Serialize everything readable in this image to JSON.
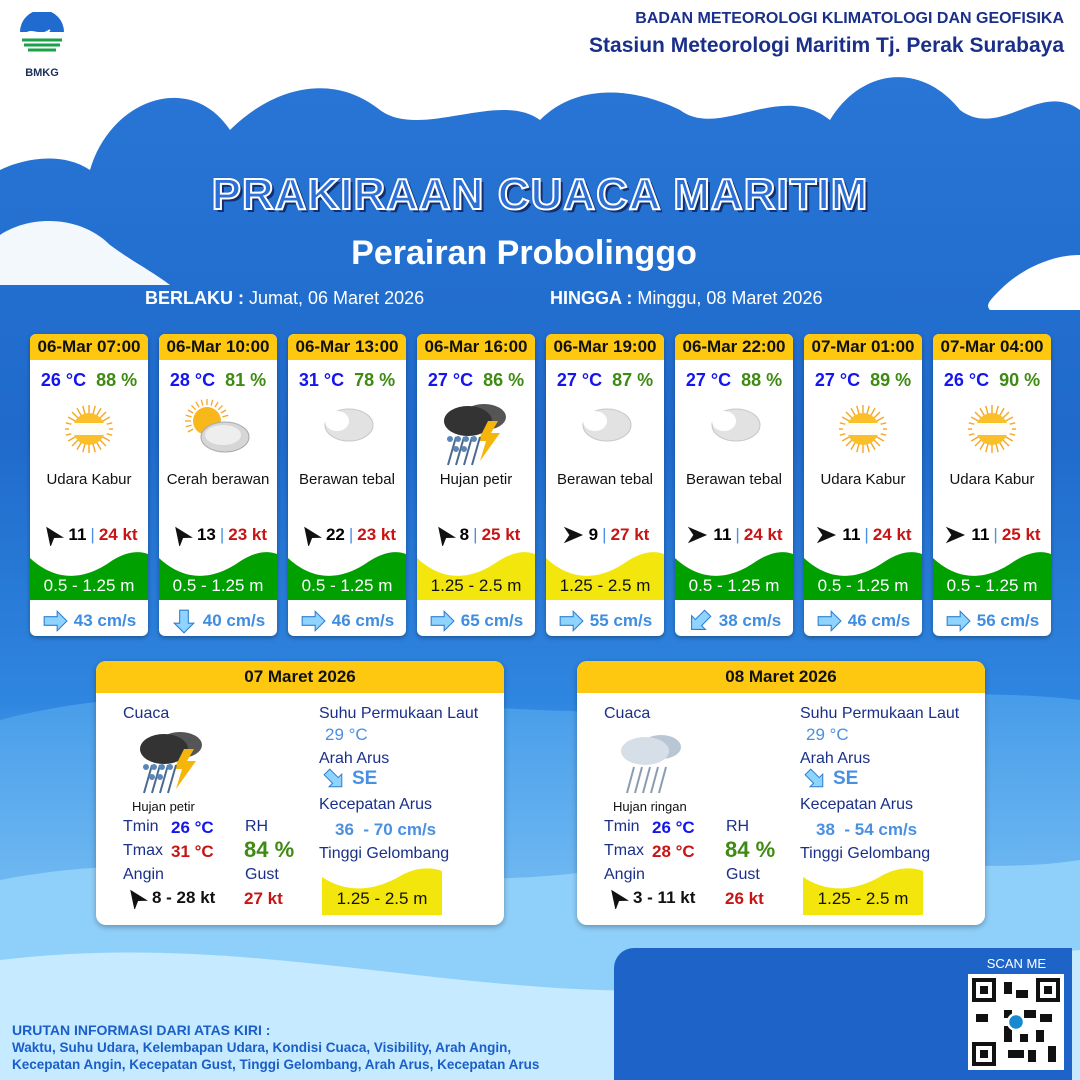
{
  "header": {
    "agency": "BADAN METEOROLOGI KLIMATOLOGI DAN GEOFISIKA",
    "station": "Stasiun Meteorologi Maritim Tj. Perak Surabaya",
    "logo_text": "BMKG"
  },
  "title": "PRAKIRAAN CUACA MARITIM",
  "subtitle": "Perairan Probolinggo",
  "validity": {
    "from_label": "BERLAKU :",
    "from": "Jumat, 06 Maret 2026",
    "to_label": "HINGGA :",
    "to": "Minggu, 08 Maret 2026"
  },
  "colors": {
    "header_yellow": "#fdc80f",
    "wave_green": "#00a000",
    "wave_yellow": "#f2e60c",
    "temp": "#1515f0",
    "rh": "#3f8a12",
    "gust": "#c81414",
    "current": "#3f8de0"
  },
  "forecasts": [
    {
      "time": "06-Mar 07:00",
      "temp": "26 °C",
      "rh": "88 %",
      "icon": "hazy-sun",
      "condition": "Udara Kabur",
      "wind_dir": "north-east",
      "wind": "11",
      "gust": "24 kt",
      "wave": "0.5 - 1.25 m",
      "wave_level": "green",
      "current_dir": "east",
      "current": "43 cm/s"
    },
    {
      "time": "06-Mar 10:00",
      "temp": "28 °C",
      "rh": "81 %",
      "icon": "partly-cloudy",
      "condition": "Cerah berawan",
      "wind_dir": "north-east",
      "wind": "13",
      "gust": "23 kt",
      "wave": "0.5 - 1.25 m",
      "wave_level": "green",
      "current_dir": "south",
      "current": "40 cm/s"
    },
    {
      "time": "06-Mar 13:00",
      "temp": "31 °C",
      "rh": "78 %",
      "icon": "cloud",
      "condition": "Berawan tebal",
      "wind_dir": "north-east",
      "wind": "22",
      "gust": "23 kt",
      "wave": "0.5 - 1.25 m",
      "wave_level": "green",
      "current_dir": "east",
      "current": "46 cm/s"
    },
    {
      "time": "06-Mar 16:00",
      "temp": "27 °C",
      "rh": "86 %",
      "icon": "thunderstorm",
      "condition": "Hujan petir",
      "wind_dir": "north-east",
      "wind": "8",
      "gust": "25 kt",
      "wave": "1.25 - 2.5 m",
      "wave_level": "yellow",
      "current_dir": "east",
      "current": "65 cm/s"
    },
    {
      "time": "06-Mar 19:00",
      "temp": "27 °C",
      "rh": "87 %",
      "icon": "cloud",
      "condition": "Berawan tebal",
      "wind_dir": "east",
      "wind": "9",
      "gust": "27 kt",
      "wave": "1.25 - 2.5 m",
      "wave_level": "yellow",
      "current_dir": "east",
      "current": "55 cm/s"
    },
    {
      "time": "06-Mar 22:00",
      "temp": "27 °C",
      "rh": "88 %",
      "icon": "cloud",
      "condition": "Berawan tebal",
      "wind_dir": "east",
      "wind": "11",
      "gust": "24 kt",
      "wave": "0.5 - 1.25 m",
      "wave_level": "green",
      "current_dir": "south-west",
      "current": "38 cm/s"
    },
    {
      "time": "07-Mar 01:00",
      "temp": "27 °C",
      "rh": "89 %",
      "icon": "hazy-sun",
      "condition": "Udara Kabur",
      "wind_dir": "east",
      "wind": "11",
      "gust": "24 kt",
      "wave": "0.5 - 1.25 m",
      "wave_level": "green",
      "current_dir": "east",
      "current": "46 cm/s"
    },
    {
      "time": "07-Mar 04:00",
      "temp": "26 °C",
      "rh": "90 %",
      "icon": "hazy-sun",
      "condition": "Udara Kabur",
      "wind_dir": "east",
      "wind": "11",
      "gust": "25 kt",
      "wave": "0.5 - 1.25 m",
      "wave_level": "green",
      "current_dir": "east",
      "current": "56 cm/s"
    }
  ],
  "labels": {
    "cuaca": "Cuaca",
    "sst": "Suhu Permukaan Laut",
    "arah_arus": "Arah Arus",
    "kec_arus": "Kecepatan Arus",
    "tinggi": "Tinggi Gelombang",
    "tmin": "Tmin",
    "tmax": "Tmax",
    "rh": "RH",
    "angin": "Angin",
    "gust": "Gust"
  },
  "daily": [
    {
      "date": "07 Maret 2026",
      "icon": "thunderstorm",
      "condition": "Hujan petir",
      "tmin": "26 °C",
      "tmax": "31 °C",
      "rh": "84 %",
      "wind": "8  - 28 kt",
      "gust": "27 kt",
      "sst": "29 °C",
      "current_dir": "SE",
      "current": "36  - 70 cm/s",
      "wave": "1.25 - 2.5 m"
    },
    {
      "date": "08 Maret 2026",
      "icon": "light-rain",
      "condition": "Hujan ringan",
      "tmin": "26 °C",
      "tmax": "28 °C",
      "rh": "84 %",
      "wind": "3  - 11 kt",
      "gust": "26 kt",
      "sst": "29 °C",
      "current_dir": "SE",
      "current": "38  - 54 cm/s",
      "wave": "1.25 - 2.5 m"
    }
  ],
  "scan_label": "SCAN ME",
  "footer": {
    "heading": "URUTAN INFORMASI DARI ATAS KIRI :",
    "line1": "Waktu, Suhu Udara, Kelembapan Udara, Kondisi Cuaca, Visibility, Arah Angin,",
    "line2": "Kecepatan Angin, Kecepatan Gust, Tinggi Gelombang, Arah Arus, Kecepatan Arus"
  }
}
